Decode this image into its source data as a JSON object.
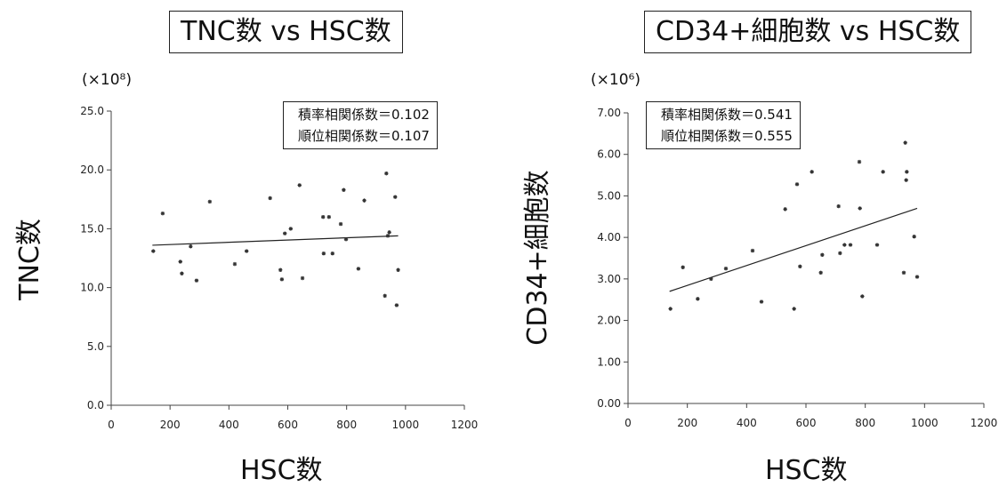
{
  "chart_data": [
    {
      "type": "scatter",
      "title": "TNC数 vs HSC数",
      "xlabel": "HSC数",
      "ylabel": "TNC数",
      "y_multiplier": "(×10⁸)",
      "xlim": [
        0,
        1200
      ],
      "ylim": [
        0,
        25
      ],
      "xticks": [
        0,
        200,
        400,
        600,
        800,
        1000,
        1200
      ],
      "yticks": [
        "0.0",
        "5.0",
        "10.0",
        "15.0",
        "20.0",
        "25.0"
      ],
      "annotations": [
        "積率相関係数＝0.102",
        "順位相関係数＝0.107"
      ],
      "trendline": [
        [
          140,
          13.6
        ],
        [
          975,
          14.4
        ]
      ],
      "points": [
        [
          143,
          13.1
        ],
        [
          175,
          16.3
        ],
        [
          235,
          12.2
        ],
        [
          240,
          11.2
        ],
        [
          270,
          13.5
        ],
        [
          290,
          10.6
        ],
        [
          335,
          17.3
        ],
        [
          420,
          12.0
        ],
        [
          460,
          13.1
        ],
        [
          540,
          17.6
        ],
        [
          575,
          11.5
        ],
        [
          580,
          10.7
        ],
        [
          590,
          14.6
        ],
        [
          610,
          15.0
        ],
        [
          640,
          18.7
        ],
        [
          650,
          10.8
        ],
        [
          720,
          16.0
        ],
        [
          722,
          12.9
        ],
        [
          740,
          16.0
        ],
        [
          752,
          12.9
        ],
        [
          780,
          15.4
        ],
        [
          790,
          18.3
        ],
        [
          798,
          14.1
        ],
        [
          840,
          11.6
        ],
        [
          860,
          17.4
        ],
        [
          930,
          9.3
        ],
        [
          935,
          19.7
        ],
        [
          940,
          14.4
        ],
        [
          945,
          14.7
        ],
        [
          965,
          17.7
        ],
        [
          970,
          8.5
        ],
        [
          975,
          11.5
        ]
      ]
    },
    {
      "type": "scatter",
      "title": "CD34+細胞数 vs HSC数",
      "xlabel": "HSC数",
      "ylabel": "CD34+細胞数",
      "y_multiplier": "(×10⁶)",
      "xlim": [
        0,
        1200
      ],
      "ylim": [
        0,
        7
      ],
      "xticks": [
        0,
        200,
        400,
        600,
        800,
        1000,
        1200
      ],
      "yticks": [
        "0.00",
        "1.00",
        "2.00",
        "3.00",
        "4.00",
        "5.00",
        "6.00",
        "7.00"
      ],
      "annotations": [
        "積率相関係数＝0.541",
        "順位相関係数＝0.555"
      ],
      "trendline": [
        [
          140,
          2.7
        ],
        [
          975,
          4.7
        ]
      ],
      "points": [
        [
          143,
          2.28
        ],
        [
          185,
          3.28
        ],
        [
          235,
          2.52
        ],
        [
          280,
          3.0
        ],
        [
          330,
          3.25
        ],
        [
          420,
          3.68
        ],
        [
          450,
          2.45
        ],
        [
          530,
          4.68
        ],
        [
          560,
          2.28
        ],
        [
          570,
          5.28
        ],
        [
          580,
          3.3
        ],
        [
          620,
          5.58
        ],
        [
          650,
          3.15
        ],
        [
          655,
          3.58
        ],
        [
          710,
          4.75
        ],
        [
          715,
          3.62
        ],
        [
          730,
          3.82
        ],
        [
          750,
          3.82
        ],
        [
          780,
          5.82
        ],
        [
          782,
          4.7
        ],
        [
          790,
          2.58
        ],
        [
          840,
          3.82
        ],
        [
          860,
          5.58
        ],
        [
          930,
          3.15
        ],
        [
          935,
          6.28
        ],
        [
          938,
          5.38
        ],
        [
          940,
          5.58
        ],
        [
          965,
          4.02
        ],
        [
          975,
          3.05
        ]
      ]
    }
  ]
}
